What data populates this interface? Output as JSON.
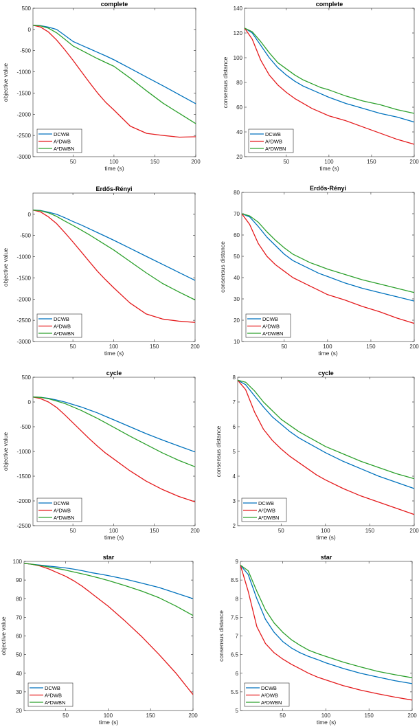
{
  "colors": {
    "DCWB": "#0072bd",
    "A2DWB": "#e41a1c",
    "A2DWBN": "#2ca02c",
    "axis": "#262626"
  },
  "chart_data": [
    {
      "type": "line",
      "title": "complete",
      "xlabel": "time (s)",
      "ylabel": "objective value",
      "xlim": [
        1,
        200
      ],
      "ylim": [
        -3000,
        500
      ],
      "yticks": [
        500,
        0,
        -500,
        -1000,
        -1500,
        -2000,
        -2500,
        -3000
      ],
      "xticks": [
        50,
        100,
        150,
        200
      ],
      "legend": "bottom-left",
      "x": [
        1,
        10,
        20,
        30,
        40,
        50,
        60,
        70,
        80,
        90,
        100,
        120,
        140,
        160,
        180,
        200
      ],
      "series": [
        {
          "name": "DCWB",
          "key": "DCWB",
          "values": [
            100,
            90,
            55,
            0,
            -140,
            -285,
            -370,
            -455,
            -540,
            -625,
            -715,
            -920,
            -1125,
            -1330,
            -1540,
            -1750
          ]
        },
        {
          "name": "A²DWB",
          "key": "A2DWB",
          "values": [
            100,
            60,
            -60,
            -250,
            -480,
            -730,
            -990,
            -1250,
            -1500,
            -1720,
            -1900,
            -2280,
            -2450,
            -2500,
            -2540,
            -2530
          ]
        },
        {
          "name": "A²DWBN",
          "key": "A2DWBN",
          "values": [
            100,
            85,
            30,
            -80,
            -230,
            -390,
            -490,
            -590,
            -690,
            -780,
            -870,
            -1150,
            -1450,
            -1740,
            -1980,
            -2220
          ]
        }
      ]
    },
    {
      "type": "line",
      "title": "complete",
      "xlabel": "time (s)",
      "ylabel": "consensus distance",
      "xlim": [
        1,
        200
      ],
      "ylim": [
        20,
        140
      ],
      "yticks": [
        140,
        120,
        100,
        80,
        60,
        40,
        20
      ],
      "xticks": [
        50,
        100,
        150,
        200
      ],
      "legend": "bottom-left",
      "x": [
        1,
        10,
        20,
        30,
        40,
        50,
        60,
        70,
        80,
        90,
        100,
        120,
        140,
        160,
        180,
        200
      ],
      "series": [
        {
          "name": "DCWB",
          "key": "DCWB",
          "values": [
            124,
            120,
            110,
            100,
            92,
            86,
            81,
            77,
            74,
            71,
            68,
            63,
            59,
            55,
            52,
            48
          ]
        },
        {
          "name": "A²DWB",
          "key": "A2DWB",
          "values": [
            124,
            115,
            98,
            86,
            78,
            72,
            67,
            63,
            59,
            56,
            53,
            49,
            44,
            39,
            34,
            30
          ]
        },
        {
          "name": "A²DWBN",
          "key": "A2DWBN",
          "values": [
            124,
            121,
            113,
            104,
            96,
            91,
            86,
            82,
            79,
            76,
            74,
            69,
            65,
            62,
            58,
            55
          ]
        }
      ]
    },
    {
      "type": "line",
      "title": "Erdős-Rényi",
      "xlabel": "time (s)",
      "ylabel": "objective value",
      "xlim": [
        1,
        200
      ],
      "ylim": [
        -3000,
        500
      ],
      "yticks": [
        0,
        -500,
        -1000,
        -1500,
        -2000,
        -2500,
        -3000
      ],
      "xticks": [
        50,
        100,
        150,
        200
      ],
      "legend": "bottom-left",
      "x": [
        1,
        10,
        20,
        30,
        40,
        50,
        60,
        70,
        80,
        90,
        100,
        120,
        140,
        160,
        180,
        200
      ],
      "series": [
        {
          "name": "DCWB",
          "key": "DCWB",
          "values": [
            100,
            90,
            50,
            0,
            -80,
            -170,
            -250,
            -340,
            -430,
            -520,
            -610,
            -800,
            -990,
            -1180,
            -1370,
            -1560
          ]
        },
        {
          "name": "A²DWB",
          "key": "A2DWB",
          "values": [
            100,
            60,
            -60,
            -220,
            -430,
            -650,
            -880,
            -1110,
            -1340,
            -1540,
            -1730,
            -2090,
            -2350,
            -2470,
            -2520,
            -2550
          ]
        },
        {
          "name": "A²DWBN",
          "key": "A2DWBN",
          "values": [
            100,
            85,
            35,
            -50,
            -160,
            -260,
            -370,
            -480,
            -600,
            -720,
            -840,
            -1110,
            -1380,
            -1630,
            -1830,
            -2020
          ]
        }
      ]
    },
    {
      "type": "line",
      "title": "Erdős-Rényi",
      "xlabel": "time (s)",
      "ylabel": "consensus distance",
      "xlim": [
        1,
        200
      ],
      "ylim": [
        10,
        80
      ],
      "yticks": [
        80,
        70,
        60,
        50,
        40,
        30,
        20,
        10
      ],
      "xticks": [
        50,
        100,
        150,
        200
      ],
      "legend": "bottom-left",
      "x": [
        1,
        10,
        20,
        30,
        40,
        50,
        60,
        70,
        80,
        90,
        100,
        120,
        140,
        160,
        180,
        200
      ],
      "series": [
        {
          "name": "DCWB",
          "key": "DCWB",
          "values": [
            70,
            68.5,
            64,
            59,
            55,
            51,
            48,
            46,
            44,
            42,
            40.5,
            37.5,
            35,
            33,
            31,
            29
          ]
        },
        {
          "name": "A²DWB",
          "key": "A2DWB",
          "values": [
            70,
            65,
            56,
            50,
            46,
            43,
            40,
            38,
            36,
            34,
            32,
            29.5,
            26.5,
            24,
            21,
            18.5
          ]
        },
        {
          "name": "A²DWBN",
          "key": "A2DWBN",
          "values": [
            70,
            69,
            66,
            61.5,
            57.5,
            54,
            51,
            49,
            47,
            45.5,
            44,
            41.5,
            39,
            37,
            35,
            33
          ]
        }
      ]
    },
    {
      "type": "line",
      "title": "cycle",
      "xlabel": "time (s)",
      "ylabel": "objective value",
      "xlim": [
        1,
        200
      ],
      "ylim": [
        -2500,
        500
      ],
      "yticks": [
        500,
        0,
        -500,
        -1000,
        -1500,
        -2000,
        -2500
      ],
      "xticks": [
        50,
        100,
        150,
        200
      ],
      "legend": "bottom-left",
      "x": [
        1,
        10,
        20,
        30,
        40,
        50,
        60,
        70,
        80,
        90,
        100,
        120,
        140,
        160,
        180,
        200
      ],
      "series": [
        {
          "name": "DCWB",
          "key": "DCWB",
          "values": [
            100,
            95,
            75,
            40,
            0,
            -50,
            -100,
            -160,
            -220,
            -290,
            -360,
            -500,
            -640,
            -770,
            -890,
            -1010
          ]
        },
        {
          "name": "A²DWB",
          "key": "A2DWB",
          "values": [
            100,
            70,
            0,
            -110,
            -260,
            -420,
            -580,
            -740,
            -890,
            -1030,
            -1150,
            -1390,
            -1600,
            -1770,
            -1910,
            -2020
          ]
        },
        {
          "name": "A²DWBN",
          "key": "A2DWBN",
          "values": [
            100,
            95,
            65,
            20,
            -30,
            -100,
            -170,
            -250,
            -330,
            -420,
            -510,
            -690,
            -860,
            -1030,
            -1180,
            -1310
          ]
        }
      ]
    },
    {
      "type": "line",
      "title": "cycle",
      "xlabel": "time (s)",
      "ylabel": "consensus distance",
      "xlim": [
        1,
        200
      ],
      "ylim": [
        2,
        8
      ],
      "yticks": [
        8,
        7,
        6,
        5,
        4,
        3,
        2
      ],
      "xticks": [
        50,
        100,
        150,
        200
      ],
      "legend": "bottom-left",
      "x": [
        1,
        10,
        20,
        30,
        40,
        50,
        60,
        70,
        80,
        90,
        100,
        120,
        140,
        160,
        180,
        200
      ],
      "series": [
        {
          "name": "DCWB",
          "key": "DCWB",
          "values": [
            7.88,
            7.7,
            7.25,
            6.8,
            6.4,
            6.1,
            5.8,
            5.55,
            5.35,
            5.15,
            4.95,
            4.6,
            4.3,
            4.0,
            3.75,
            3.5
          ]
        },
        {
          "name": "A²DWB",
          "key": "A2DWB",
          "values": [
            7.88,
            7.5,
            6.6,
            5.9,
            5.45,
            5.1,
            4.8,
            4.55,
            4.3,
            4.05,
            3.85,
            3.5,
            3.2,
            2.95,
            2.7,
            2.45
          ]
        },
        {
          "name": "A²DWBN",
          "key": "A2DWBN",
          "values": [
            7.88,
            7.8,
            7.45,
            7.0,
            6.65,
            6.3,
            6.05,
            5.8,
            5.6,
            5.4,
            5.2,
            4.9,
            4.6,
            4.35,
            4.1,
            3.9
          ]
        }
      ]
    },
    {
      "type": "line",
      "title": "star",
      "xlabel": "time (s)",
      "ylabel": "objective value",
      "xlim": [
        1,
        200
      ],
      "ylim": [
        20,
        100
      ],
      "yticks": [
        100,
        90,
        80,
        70,
        60,
        50,
        40,
        30,
        20
      ],
      "xticks": [
        50,
        100,
        150,
        200
      ],
      "legend": "bottom-left",
      "x": [
        1,
        10,
        20,
        30,
        40,
        50,
        60,
        70,
        80,
        90,
        100,
        120,
        140,
        160,
        180,
        200
      ],
      "series": [
        {
          "name": "DCWB",
          "key": "DCWB",
          "values": [
            99,
            98.5,
            98,
            97.5,
            97,
            96.5,
            95.8,
            95,
            94,
            93.2,
            92.4,
            90.5,
            88.3,
            86,
            83,
            80
          ]
        },
        {
          "name": "A²DWB",
          "key": "A2DWB",
          "values": [
            99,
            98.5,
            97.5,
            96,
            94,
            92,
            89.5,
            86.5,
            83,
            79.5,
            76,
            68,
            59.5,
            50,
            40,
            28.5
          ]
        },
        {
          "name": "A²DWBN",
          "key": "A2DWBN",
          "values": [
            99,
            98.5,
            97.8,
            97,
            96.2,
            95.3,
            94.3,
            93.3,
            92.2,
            91,
            89.8,
            87,
            84,
            80.5,
            76,
            71
          ]
        }
      ]
    },
    {
      "type": "line",
      "title": "star",
      "xlabel": "time (s)",
      "ylabel": "consensus distance",
      "xlim": [
        1,
        200
      ],
      "ylim": [
        5,
        9
      ],
      "yticks": [
        9,
        8.5,
        8,
        7.5,
        7,
        6.5,
        6,
        5.5,
        5
      ],
      "xticks": [
        50,
        100,
        150,
        200
      ],
      "legend": "bottom-left",
      "x": [
        1,
        10,
        20,
        30,
        40,
        50,
        60,
        70,
        80,
        90,
        100,
        120,
        140,
        160,
        180,
        200
      ],
      "series": [
        {
          "name": "DCWB",
          "key": "DCWB",
          "values": [
            8.9,
            8.65,
            8.0,
            7.45,
            7.1,
            6.85,
            6.68,
            6.55,
            6.45,
            6.37,
            6.28,
            6.13,
            6.0,
            5.9,
            5.8,
            5.72
          ]
        },
        {
          "name": "A²DWB",
          "key": "A2DWB",
          "values": [
            8.9,
            8.2,
            7.25,
            6.8,
            6.55,
            6.38,
            6.24,
            6.12,
            6.0,
            5.9,
            5.82,
            5.67,
            5.55,
            5.45,
            5.36,
            5.28
          ]
        },
        {
          "name": "A²DWBN",
          "key": "A2DWBN",
          "values": [
            8.9,
            8.75,
            8.2,
            7.7,
            7.35,
            7.1,
            6.9,
            6.75,
            6.62,
            6.53,
            6.45,
            6.3,
            6.17,
            6.05,
            5.96,
            5.88
          ]
        }
      ]
    }
  ]
}
